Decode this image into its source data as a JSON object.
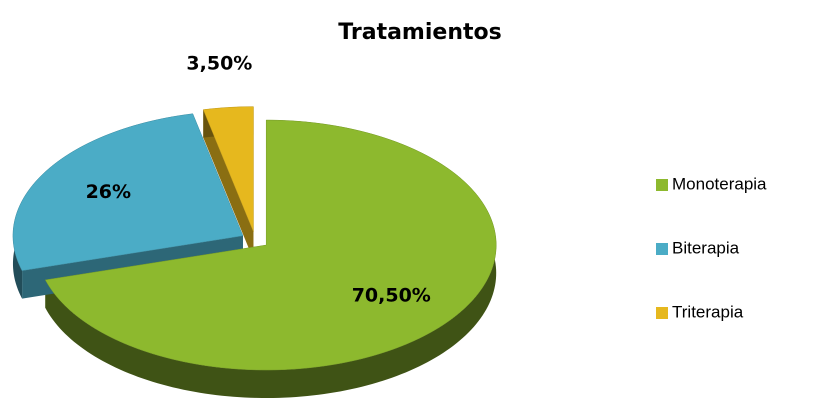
{
  "chart_data": {
    "type": "pie",
    "title": "Tratamientos",
    "categories": [
      "Monoterapia",
      "Biterapia",
      "Triterapia"
    ],
    "values": [
      70.5,
      26,
      3.5
    ],
    "value_labels": [
      "70,50%",
      "26%",
      "3,50%"
    ],
    "colors": [
      "#8db92e",
      "#4bacc6",
      "#e6b81e"
    ],
    "legend": "right"
  }
}
